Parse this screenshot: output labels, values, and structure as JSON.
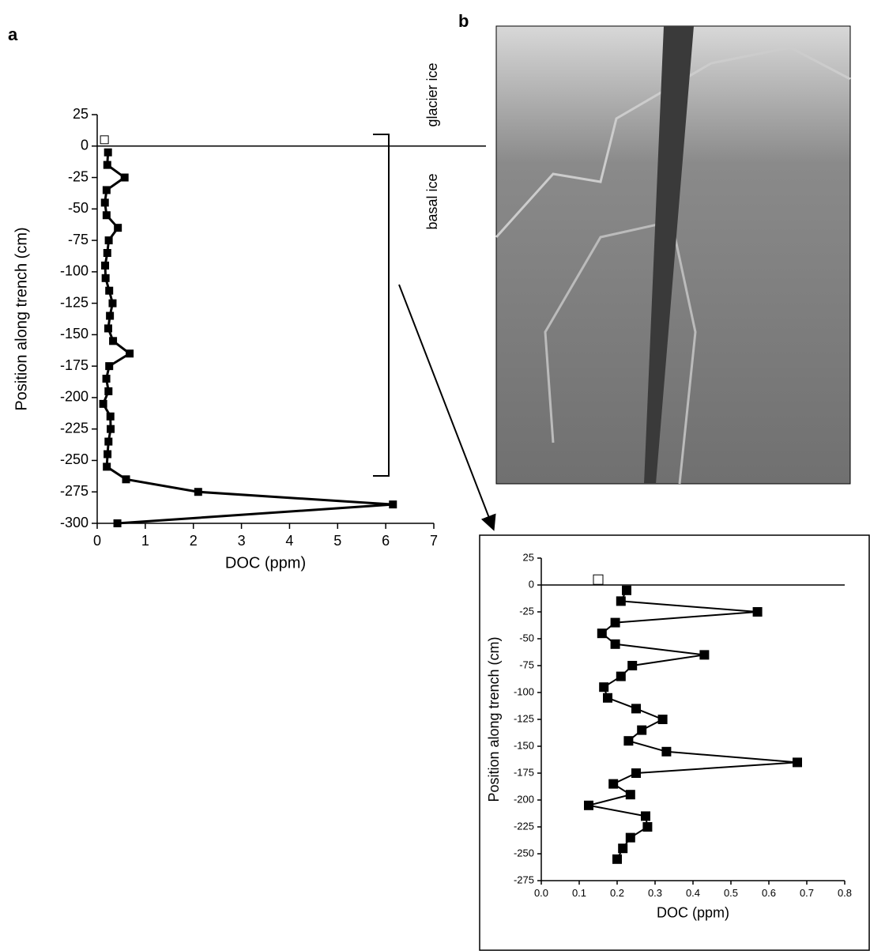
{
  "panel_labels": [
    "a",
    "b"
  ],
  "annotations": [
    "glacier ice",
    "basal ice"
  ],
  "chart_data": [
    {
      "type": "line",
      "xlabel": "DOC (ppm)",
      "ylabel": "Position along trench (cm)",
      "color": "#000000",
      "positions": [
        -5,
        -15,
        -25,
        -35,
        -45,
        -55,
        -65,
        -75,
        -85,
        -95,
        -105,
        -115,
        -125,
        -135,
        -145,
        -155,
        -165,
        -175,
        -185,
        -195,
        -205,
        -215,
        -225,
        -235,
        -245,
        -255,
        -265,
        -275,
        -285,
        -300
      ],
      "values": [
        0.225,
        0.21,
        0.57,
        0.195,
        0.16,
        0.195,
        0.43,
        0.24,
        0.21,
        0.165,
        0.175,
        0.25,
        0.32,
        0.265,
        0.23,
        0.33,
        0.675,
        0.25,
        0.19,
        0.235,
        0.125,
        0.275,
        0.28,
        0.235,
        0.215,
        0.2,
        0.6,
        2.1,
        6.15,
        0.42
      ],
      "open_marker": {
        "position": 5,
        "value": 0.15
      },
      "xlim": [
        0,
        7
      ],
      "ylim": [
        -300,
        25
      ],
      "xticks": [
        0,
        1,
        2,
        3,
        4,
        5,
        6,
        7
      ],
      "yticks": [
        25,
        0,
        -25,
        -50,
        -75,
        -100,
        -125,
        -150,
        -175,
        -200,
        -225,
        -250,
        -275,
        -300
      ]
    },
    {
      "type": "line",
      "xlabel": "DOC (ppm)",
      "ylabel": "Position along trench (cm)",
      "color": "#000000",
      "positions": [
        -5,
        -15,
        -25,
        -35,
        -45,
        -55,
        -65,
        -75,
        -85,
        -95,
        -105,
        -115,
        -125,
        -135,
        -145,
        -155,
        -165,
        -175,
        -185,
        -195,
        -205,
        -215,
        -225,
        -235,
        -245,
        -255
      ],
      "values": [
        0.225,
        0.21,
        0.57,
        0.195,
        0.16,
        0.195,
        0.43,
        0.24,
        0.21,
        0.165,
        0.175,
        0.25,
        0.32,
        0.265,
        0.23,
        0.33,
        0.675,
        0.25,
        0.19,
        0.235,
        0.125,
        0.275,
        0.28,
        0.235,
        0.215,
        0.2
      ],
      "open_marker": {
        "position": 5,
        "value": 0.15
      },
      "xlim": [
        0,
        0.8
      ],
      "ylim": [
        -275,
        25
      ],
      "xticks": [
        {
          "value": 0,
          "label": "0.0"
        },
        0.1,
        0.2,
        0.3,
        0.4,
        0.5,
        0.6,
        0.7,
        0.8
      ],
      "yticks": [
        25,
        0,
        -25,
        -50,
        -75,
        -100,
        -125,
        -150,
        -175,
        -200,
        -225,
        -250,
        -275
      ]
    }
  ]
}
